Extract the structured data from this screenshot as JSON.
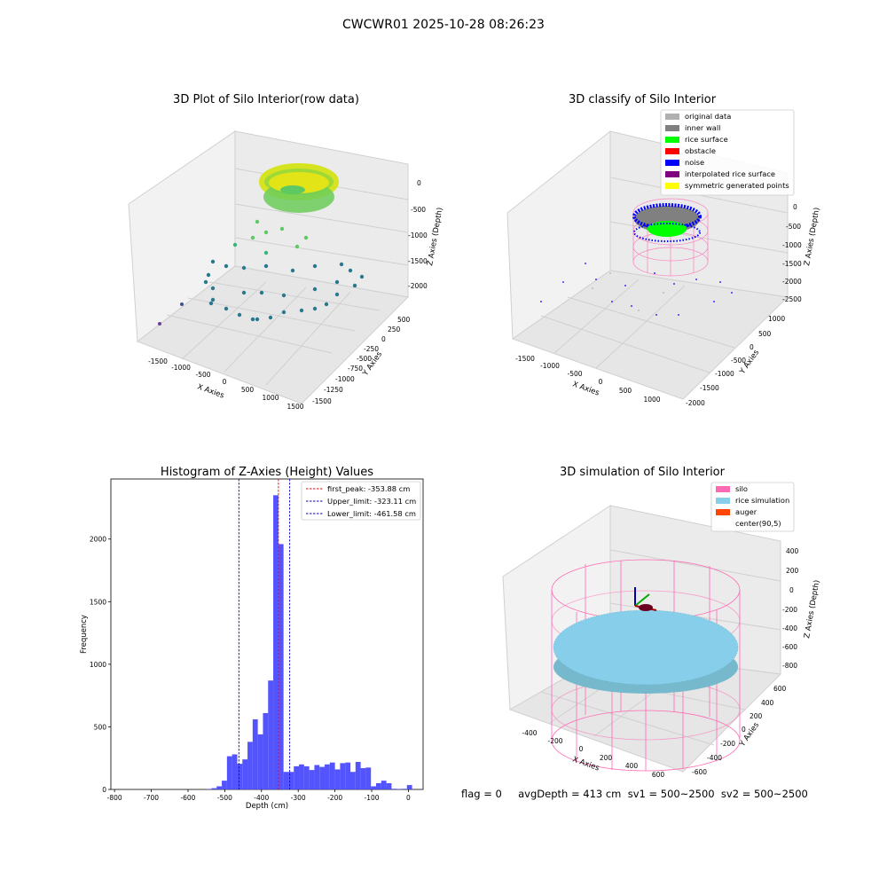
{
  "figure_title": "CWCWR01 2025-10-28 08:26:23",
  "footer": "flag = 0     avgDepth = 413 cm  sv1 = 500~2500  sv2 = 500~2500",
  "colors": {
    "histogram_bars": "#4b4bff",
    "peak_line": "#ff0000",
    "limit_lines": "#0000cc",
    "silo": "#ff69b4",
    "rice_simulation": "#87ceeb",
    "auger": "#ff4500",
    "original_data": "#b0b0b0",
    "inner_wall": "#808080",
    "rice_surface": "#00ff00",
    "obstacle": "#ff0000",
    "noise": "#0000ff",
    "interpolated_rice_surface": "#800080",
    "symmetric_generated_points": "#ffff00"
  },
  "chart_data": [
    {
      "type": "scatter",
      "title": "3D Plot of Silo Interior(row data)",
      "xlabel": "X Axies",
      "ylabel": "Y Axies",
      "zlabel": "Z Axies (Depth)",
      "x_ticks": [
        "-1500",
        "-1000",
        "-500",
        "0",
        "500",
        "1000",
        "1500"
      ],
      "y_ticks": [
        "500",
        "250",
        "0",
        "-250",
        "-500",
        "-750",
        "-1000",
        "-1250",
        "-1500"
      ],
      "z_ticks": [
        "0",
        "-500",
        "-1000",
        "-1500",
        "-2000"
      ],
      "colormap": "viridis",
      "description_points": "ring of dense yellow-green points near surface, scattered blue-green points toward the floor"
    },
    {
      "type": "scatter",
      "title": "3D classify of Silo Interior",
      "xlabel": "X Axies",
      "ylabel": "Y Axies",
      "zlabel": "Z Axies (Depth)",
      "x_ticks": [
        "-1500",
        "-1000",
        "-500",
        "0",
        "500",
        "1000"
      ],
      "y_ticks": [
        "1000",
        "500",
        "0",
        "-500",
        "-1000",
        "-1500",
        "-2000"
      ],
      "z_ticks": [
        "0",
        "-500",
        "-1000",
        "-1500",
        "-2000",
        "-2500"
      ],
      "legend": [
        {
          "label": "original data",
          "color": "#b0b0b0"
        },
        {
          "label": "inner wall",
          "color": "#808080"
        },
        {
          "label": "rice surface",
          "color": "#00ff00"
        },
        {
          "label": "obstacle",
          "color": "#ff0000"
        },
        {
          "label": "noise",
          "color": "#0000ff"
        },
        {
          "label": "interpolated rice surface",
          "color": "#800080"
        },
        {
          "label": "symmetric generated points",
          "color": "#ffff00"
        }
      ]
    },
    {
      "type": "bar",
      "title": "Histogram of Z-Axies (Height) Values",
      "xlabel": "Depth (cm)",
      "ylabel": "Frequency",
      "xlim": [
        -810,
        40
      ],
      "ylim": [
        0,
        2480
      ],
      "x_ticks": [
        -800,
        -700,
        -600,
        -500,
        -400,
        -300,
        -200,
        -100,
        0
      ],
      "y_ticks": [
        0,
        500,
        1000,
        1500,
        2000
      ],
      "bin_width": 14,
      "bins": [
        {
          "x": -550,
          "y": 3
        },
        {
          "x": -536,
          "y": 10
        },
        {
          "x": -522,
          "y": 25
        },
        {
          "x": -508,
          "y": 70
        },
        {
          "x": -494,
          "y": 265
        },
        {
          "x": -480,
          "y": 280
        },
        {
          "x": -466,
          "y": 205
        },
        {
          "x": -452,
          "y": 240
        },
        {
          "x": -438,
          "y": 380
        },
        {
          "x": -424,
          "y": 560
        },
        {
          "x": -410,
          "y": 440
        },
        {
          "x": -396,
          "y": 610
        },
        {
          "x": -382,
          "y": 870
        },
        {
          "x": -368,
          "y": 2350
        },
        {
          "x": -354,
          "y": 1960
        },
        {
          "x": -340,
          "y": 140
        },
        {
          "x": -326,
          "y": 140
        },
        {
          "x": -312,
          "y": 185
        },
        {
          "x": -298,
          "y": 200
        },
        {
          "x": -284,
          "y": 185
        },
        {
          "x": -270,
          "y": 155
        },
        {
          "x": -256,
          "y": 195
        },
        {
          "x": -242,
          "y": 180
        },
        {
          "x": -228,
          "y": 200
        },
        {
          "x": -214,
          "y": 215
        },
        {
          "x": -200,
          "y": 160
        },
        {
          "x": -186,
          "y": 210
        },
        {
          "x": -172,
          "y": 215
        },
        {
          "x": -158,
          "y": 140
        },
        {
          "x": -144,
          "y": 220
        },
        {
          "x": -130,
          "y": 170
        },
        {
          "x": -116,
          "y": 175
        },
        {
          "x": -102,
          "y": 25
        },
        {
          "x": -88,
          "y": 50
        },
        {
          "x": -74,
          "y": 70
        },
        {
          "x": -60,
          "y": 50
        },
        {
          "x": -46,
          "y": 5
        },
        {
          "x": -32,
          "y": 3
        },
        {
          "x": -18,
          "y": 5
        },
        {
          "x": -4,
          "y": 35
        }
      ],
      "vlines": [
        {
          "label": "first_peak: -353.88 cm",
          "x": -353.88,
          "color": "#ff0000"
        },
        {
          "label": "Upper_limit: -323.11 cm",
          "x": -323.11,
          "color": "#0000cc"
        },
        {
          "label": "Lower_limit: -461.58 cm",
          "x": -461.58,
          "color": "#0000cc"
        }
      ],
      "legend_position": "top-right"
    },
    {
      "type": "scatter",
      "title": "3D simulation of Silo Interior",
      "xlabel": "X Axies",
      "ylabel": "Y Axies",
      "zlabel": "Z Axies (Depth)",
      "x_ticks": [
        "-400",
        "-200",
        "0",
        "200",
        "400",
        "600"
      ],
      "y_ticks": [
        "600",
        "400",
        "200",
        "0",
        "-200",
        "-400",
        "-600"
      ],
      "z_ticks": [
        "400",
        "200",
        "0",
        "-200",
        "-400",
        "-600",
        "-800"
      ],
      "legend": [
        {
          "label": "silo",
          "color": "#ff69b4"
        },
        {
          "label": "rice simulation",
          "color": "#87ceeb"
        },
        {
          "label": "auger",
          "color": "#ff4500"
        },
        {
          "label": "center(90,5)",
          "color": ""
        }
      ]
    }
  ]
}
